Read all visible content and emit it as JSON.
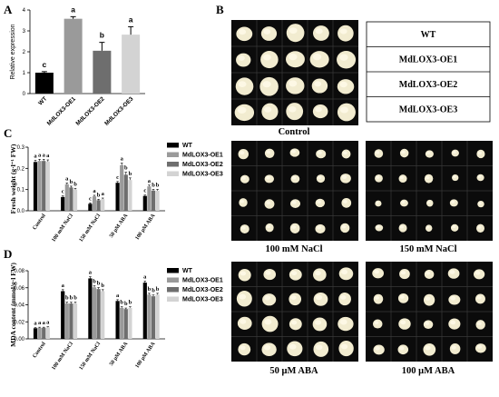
{
  "panels": {
    "a": "A",
    "b": "B",
    "c": "C",
    "d": "D"
  },
  "series_names": [
    "WT",
    "MdLOX3-OE1",
    "MdLOX3-OE2",
    "MdLOX3-OE3"
  ],
  "colors": {
    "wt": "#000000",
    "oe1": "#9a9a9a",
    "oe2": "#6e6e6e",
    "oe3": "#d3d3d3",
    "plate": "#0b0b0b",
    "callus": "#f2ecd0"
  },
  "photo_captions": [
    "Control",
    "100 mM NaCl",
    "150 mM NaCl",
    "50 μM ABA",
    "100 μM ABA"
  ],
  "chart_data": [
    {
      "type": "bar",
      "panel": "A",
      "categories": [
        "WT",
        "MdLOX3-OE1",
        "MdLOX3-OE2",
        "MdLOX3-OE3"
      ],
      "values": [
        1.0,
        3.58,
        2.05,
        2.82
      ],
      "errors": [
        0.05,
        0.1,
        0.4,
        0.38
      ],
      "letters": [
        "c",
        "a",
        "b",
        "a"
      ],
      "ylabel": "Relative expression",
      "ylim": [
        0,
        4
      ],
      "yticks": [
        "0",
        "1",
        "2",
        "3",
        "4"
      ]
    },
    {
      "type": "bar",
      "panel": "C",
      "categories": [
        "Control",
        "100 mM NaCl",
        "150 mM NaCl",
        "50 μM ABA",
        "100 μM ABA"
      ],
      "series": [
        {
          "name": "WT",
          "values": [
            0.23,
            0.065,
            0.033,
            0.132,
            0.07
          ],
          "errors": [
            0.008,
            0.005,
            0.004,
            0.006,
            0.004
          ]
        },
        {
          "name": "MdLOX3-OE1",
          "values": [
            0.235,
            0.125,
            0.068,
            0.215,
            0.115
          ],
          "errors": [
            0.008,
            0.006,
            0.005,
            0.01,
            0.006
          ]
        },
        {
          "name": "MdLOX3-OE2",
          "values": [
            0.235,
            0.11,
            0.05,
            0.17,
            0.095
          ],
          "errors": [
            0.008,
            0.006,
            0.004,
            0.012,
            0.006
          ]
        },
        {
          "name": "MdLOX3-OE3",
          "values": [
            0.232,
            0.1,
            0.055,
            0.145,
            0.095
          ],
          "errors": [
            0.008,
            0.006,
            0.005,
            0.01,
            0.006
          ]
        }
      ],
      "letters": [
        [
          "a",
          "a",
          "a",
          "a"
        ],
        [
          "c",
          "a",
          "b",
          "b"
        ],
        [
          "c",
          "a",
          "b",
          "a"
        ],
        [
          "c",
          "a",
          "b",
          "b"
        ],
        [
          "c",
          "a",
          "b",
          "b"
        ]
      ],
      "ylabel": "Fresh weight (g·l⁻¹ FW)",
      "ylim": [
        0,
        0.3
      ],
      "yticks": [
        "0.0",
        "0.1",
        "0.2",
        "0.3"
      ]
    },
    {
      "type": "bar",
      "panel": "D",
      "categories": [
        "Control",
        "100 mM NaCl",
        "150 mM NaCl",
        "50 μM ABA",
        "100 μM ABA"
      ],
      "series": [
        {
          "name": "WT",
          "values": [
            0.0125,
            0.056,
            0.071,
            0.0445,
            0.066
          ],
          "errors": [
            0.0007,
            0.0018,
            0.002,
            0.0015,
            0.0018
          ]
        },
        {
          "name": "MdLOX3-OE1",
          "values": [
            0.013,
            0.0415,
            0.0605,
            0.0365,
            0.052
          ],
          "errors": [
            0.0007,
            0.0015,
            0.0018,
            0.0012,
            0.0015
          ]
        },
        {
          "name": "MdLOX3-OE2",
          "values": [
            0.013,
            0.0415,
            0.0585,
            0.035,
            0.05
          ],
          "errors": [
            0.0007,
            0.0015,
            0.0018,
            0.0012,
            0.0015
          ]
        },
        {
          "name": "MdLOX3-OE3",
          "values": [
            0.0135,
            0.0415,
            0.056,
            0.0365,
            0.052
          ],
          "errors": [
            0.0007,
            0.0015,
            0.0018,
            0.0012,
            0.0015
          ]
        }
      ],
      "letters": [
        [
          "a",
          "a",
          "a",
          "a"
        ],
        [
          "a",
          "b",
          "b",
          "b"
        ],
        [
          "a",
          "b",
          "b",
          "b"
        ],
        [
          "a",
          "b",
          "b",
          "b"
        ],
        [
          "a",
          "b",
          "b",
          "b"
        ]
      ],
      "ylabel": "MDA content (mmol/g·l FW)",
      "ylim": [
        0,
        0.08
      ],
      "yticks": [
        "0.00",
        "0.02",
        "0.04",
        "0.06",
        "0.08"
      ]
    }
  ]
}
